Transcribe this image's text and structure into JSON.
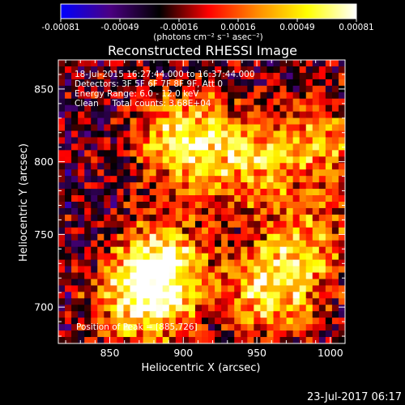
{
  "chart_data": {
    "type": "heatmap",
    "title": "Reconstructed RHESSI Image",
    "xlabel": "Heliocentric X (arcsec)",
    "ylabel": "Heliocentric Y (arcsec)",
    "xlim": [
      815,
      1010
    ],
    "ylim": [
      675,
      870
    ],
    "xticks": [
      850,
      900,
      950,
      1000
    ],
    "yticks": [
      700,
      750,
      800,
      850
    ],
    "colorbar": {
      "min": -0.00081,
      "max": 0.00081,
      "ticks": [
        "-0.00081",
        "-0.00049",
        "-0.00016",
        "0.00016",
        "0.00049",
        "0.00081"
      ],
      "unit_label": "(photons cm⁻² s⁻¹ asec⁻²)",
      "colormap": [
        "#0000ff",
        "#4b0082",
        "#000000",
        "#ff0000",
        "#ff8c00",
        "#ffff00",
        "#ffffff"
      ]
    },
    "info_lines": [
      "18-Jul-2015 16:27:44.000 to 16:37:44.000",
      "Detectors: 3F 5F 6F 7F 8F 9F, Att 0",
      "Energy Range: 6.0 - 12.0 keV",
      "Clean     Total counts: 3.68E+04"
    ],
    "peak_label": "Position of Peak = [885,726]",
    "peak": [
      885,
      726
    ],
    "grid": false,
    "bright_regions": [
      {
        "x": 885,
        "y": 726,
        "peak": 1.0
      },
      {
        "x": 900,
        "y": 815,
        "peak": 0.85
      },
      {
        "x": 945,
        "y": 800,
        "peak": 0.6
      },
      {
        "x": 960,
        "y": 710,
        "peak": 0.75
      },
      {
        "x": 870,
        "y": 700,
        "peak": 0.6
      },
      {
        "x": 995,
        "y": 810,
        "peak": 0.55
      },
      {
        "x": 985,
        "y": 745,
        "peak": 0.5
      }
    ]
  },
  "footer": {
    "timestamp": "23-Jul-2017 06:17"
  }
}
